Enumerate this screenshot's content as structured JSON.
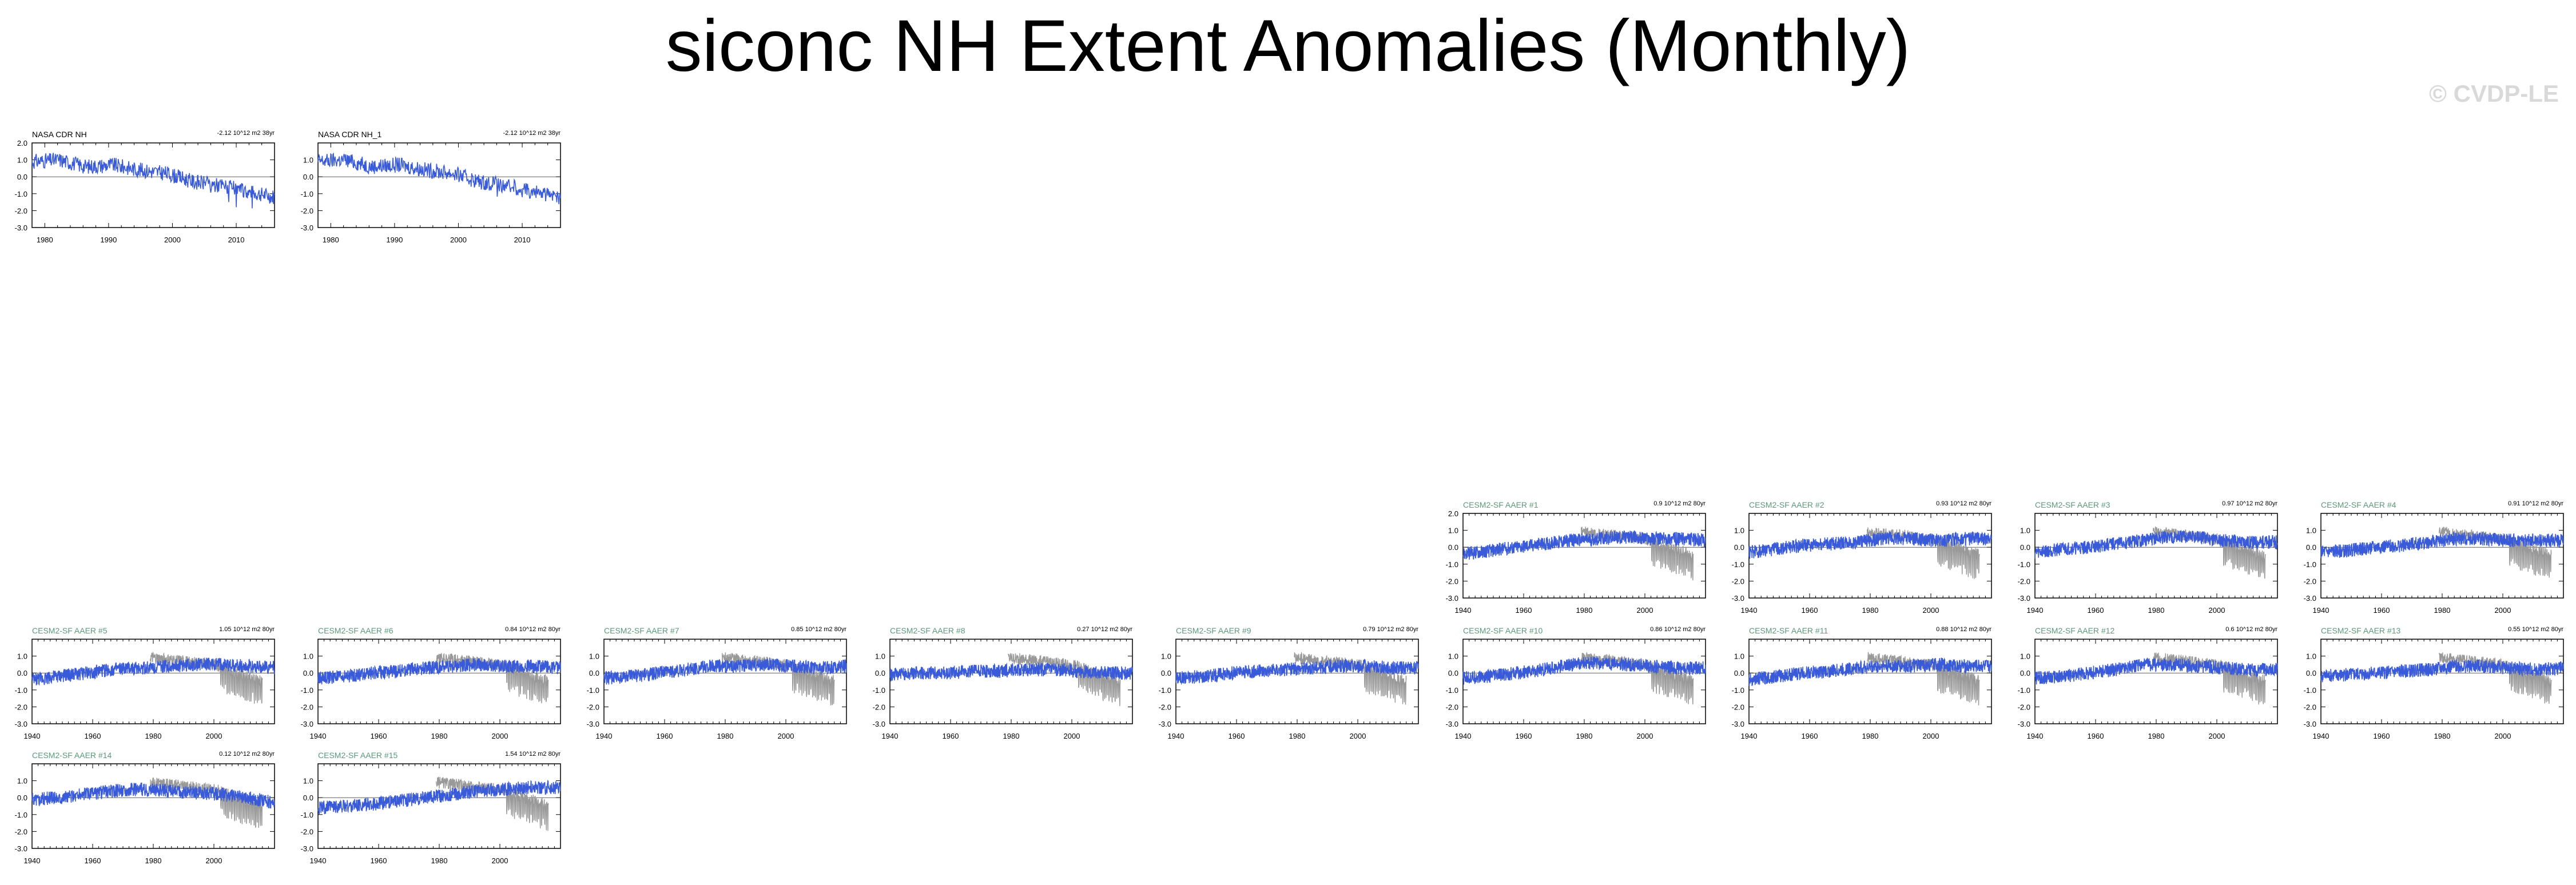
{
  "title": "siconc NH Extent Anomalies (Monthly)",
  "watermark": "© CVDP-LE",
  "colors": {
    "model": "#3a5bd9",
    "obs_overlay": "#999999",
    "model_title": "#5a9a7a",
    "obs_title": "#000000"
  },
  "chart_data": [
    {
      "type": "line",
      "title": "NASA CDR NH",
      "trend": "-2.12 10^12 m2 38yr",
      "x_range": [
        1978,
        2016
      ],
      "xticks": [
        1980,
        1990,
        2000,
        2010
      ],
      "ylim": [
        -3.0,
        2.0
      ],
      "yticks": [
        "2.0",
        "1.0",
        "0.0",
        "-1.0",
        "-2.0",
        "-3.0"
      ],
      "series": [
        {
          "values": [
            0.9,
            1.0,
            0.6,
            0.7,
            0.4,
            0.2,
            -0.3,
            -0.5,
            -0.9,
            -1.2
          ]
        }
      ]
    },
    {
      "type": "line",
      "title": "NASA CDR NH_1",
      "trend": "-2.12 10^12 m2 38yr",
      "x_range": [
        1978,
        2016
      ],
      "xticks": [
        1980,
        1990,
        2000,
        2010
      ],
      "ylim": [
        -3.0,
        2.0
      ],
      "yticks": [
        "1.0",
        "0.0",
        "-1.0",
        "-2.0",
        "-3.0"
      ],
      "series": [
        {
          "values": [
            0.9,
            1.0,
            0.6,
            0.7,
            0.4,
            0.2,
            -0.3,
            -0.5,
            -0.9,
            -1.2
          ]
        }
      ]
    },
    {
      "type": "line",
      "title": "CESM2-SF AAER #1",
      "trend": "0.9 10^12 m2 80yr",
      "x_range": [
        1940,
        2020
      ],
      "xticks": [
        1940,
        1960,
        1980,
        2000
      ],
      "ylim": [
        -3.0,
        2.0
      ],
      "yticks": [
        "2.0",
        "1.0",
        "0.0",
        "-1.0",
        "-2.0",
        "-3.0"
      ],
      "series": [
        {
          "values": [
            -0.4,
            -0.2,
            0.0,
            0.2,
            0.4,
            0.5,
            0.6,
            0.5,
            0.5,
            0.4
          ]
        }
      ]
    },
    {
      "type": "line",
      "title": "CESM2-SF AAER #2",
      "trend": "0.93 10^12 m2 80yr",
      "x_range": [
        1940,
        2020
      ],
      "xticks": [
        1940,
        1960,
        1980,
        2000
      ],
      "ylim": [
        -3.0,
        2.0
      ],
      "yticks": [
        "1.0",
        "0.0",
        "-1.0",
        "-2.0",
        "-3.0"
      ],
      "series": [
        {
          "values": [
            -0.3,
            -0.1,
            0.1,
            0.2,
            0.3,
            0.5,
            0.5,
            0.4,
            0.5,
            0.5
          ]
        }
      ]
    },
    {
      "type": "line",
      "title": "CESM2-SF AAER #3",
      "trend": "0.97 10^12 m2 80yr",
      "x_range": [
        1940,
        2020
      ],
      "xticks": [
        1940,
        1960,
        1980,
        2000
      ],
      "ylim": [
        -3.0,
        2.0
      ],
      "yticks": [
        "1.0",
        "0.0",
        "-1.0",
        "-2.0",
        "-3.0"
      ],
      "series": [
        {
          "values": [
            -0.3,
            -0.1,
            0.0,
            0.2,
            0.4,
            0.6,
            0.6,
            0.4,
            0.3,
            0.3
          ]
        }
      ]
    },
    {
      "type": "line",
      "title": "CESM2-SF AAER #4",
      "trend": "0.91 10^12 m2 80yr",
      "x_range": [
        1940,
        2020
      ],
      "xticks": [
        1940,
        1960,
        1980,
        2000
      ],
      "ylim": [
        -3.0,
        2.0
      ],
      "yticks": [
        "1.0",
        "0.0",
        "-1.0",
        "-2.0",
        "-3.0"
      ],
      "series": [
        {
          "values": [
            -0.3,
            -0.2,
            0.0,
            0.1,
            0.3,
            0.5,
            0.5,
            0.4,
            0.4,
            0.4
          ]
        }
      ]
    },
    {
      "type": "line",
      "title": "CESM2-SF AAER #5",
      "trend": "1.05 10^12 m2 80yr",
      "x_range": [
        1940,
        2020
      ],
      "xticks": [
        1940,
        1960,
        1980,
        2000
      ],
      "ylim": [
        -3.0,
        2.0
      ],
      "yticks": [
        "1.0",
        "0.0",
        "-1.0",
        "-2.0",
        "-3.0"
      ],
      "series": [
        {
          "values": [
            -0.4,
            -0.2,
            0.0,
            0.2,
            0.3,
            0.4,
            0.5,
            0.5,
            0.4,
            0.3
          ]
        }
      ]
    },
    {
      "type": "line",
      "title": "CESM2-SF AAER #6",
      "trend": "0.84 10^12 m2 80yr",
      "x_range": [
        1940,
        2020
      ],
      "xticks": [
        1940,
        1960,
        1980,
        2000
      ],
      "ylim": [
        -3.0,
        2.0
      ],
      "yticks": [
        "1.0",
        "0.0",
        "-1.0",
        "-2.0",
        "-3.0"
      ],
      "series": [
        {
          "values": [
            -0.3,
            -0.2,
            0.0,
            0.1,
            0.3,
            0.4,
            0.5,
            0.4,
            0.4,
            0.3
          ]
        }
      ]
    },
    {
      "type": "line",
      "title": "CESM2-SF AAER #7",
      "trend": "0.85 10^12 m2 80yr",
      "x_range": [
        1940,
        2020
      ],
      "xticks": [
        1940,
        1960,
        1980,
        2000
      ],
      "ylim": [
        -3.0,
        2.0
      ],
      "yticks": [
        "1.0",
        "0.0",
        "-1.0",
        "-2.0",
        "-3.0"
      ],
      "series": [
        {
          "values": [
            -0.3,
            -0.2,
            0.0,
            0.2,
            0.4,
            0.4,
            0.5,
            0.4,
            0.3,
            0.4
          ]
        }
      ]
    },
    {
      "type": "line",
      "title": "CESM2-SF AAER #8",
      "trend": "0.27 10^12 m2 80yr",
      "x_range": [
        1940,
        2020
      ],
      "xticks": [
        1940,
        1960,
        1980,
        2000
      ],
      "ylim": [
        -3.0,
        2.0
      ],
      "yticks": [
        "1.0",
        "0.0",
        "-1.0",
        "-2.0",
        "-3.0"
      ],
      "series": [
        {
          "values": [
            -0.1,
            0.0,
            0.0,
            0.1,
            0.1,
            0.2,
            0.2,
            0.1,
            0.0,
            0.0
          ]
        }
      ]
    },
    {
      "type": "line",
      "title": "CESM2-SF AAER #9",
      "trend": "0.79 10^12 m2 80yr",
      "x_range": [
        1940,
        2020
      ],
      "xticks": [
        1940,
        1960,
        1980,
        2000
      ],
      "ylim": [
        -3.0,
        2.0
      ],
      "yticks": [
        "1.0",
        "0.0",
        "-1.0",
        "-2.0",
        "-3.0"
      ],
      "series": [
        {
          "values": [
            -0.3,
            -0.2,
            0.0,
            0.1,
            0.2,
            0.3,
            0.4,
            0.4,
            0.3,
            0.3
          ]
        }
      ]
    },
    {
      "type": "line",
      "title": "CESM2-SF AAER #10",
      "trend": "0.86 10^12 m2 80yr",
      "x_range": [
        1940,
        2020
      ],
      "xticks": [
        1940,
        1960,
        1980,
        2000
      ],
      "ylim": [
        -3.0,
        2.0
      ],
      "yticks": [
        "1.0",
        "0.0",
        "-1.0",
        "-2.0",
        "-3.0"
      ],
      "series": [
        {
          "values": [
            -0.3,
            -0.2,
            0.0,
            0.2,
            0.5,
            0.6,
            0.5,
            0.4,
            0.3,
            0.3
          ]
        }
      ]
    },
    {
      "type": "line",
      "title": "CESM2-SF AAER #11",
      "trend": "0.88 10^12 m2 80yr",
      "x_range": [
        1940,
        2020
      ],
      "xticks": [
        1940,
        1960,
        1980,
        2000
      ],
      "ylim": [
        -3.0,
        2.0
      ],
      "yticks": [
        "1.0",
        "0.0",
        "-1.0",
        "-2.0",
        "-3.0"
      ],
      "series": [
        {
          "values": [
            -0.4,
            -0.2,
            0.0,
            0.1,
            0.3,
            0.4,
            0.4,
            0.5,
            0.4,
            0.4
          ]
        }
      ]
    },
    {
      "type": "line",
      "title": "CESM2-SF AAER #12",
      "trend": "0.6 10^12 m2 80yr",
      "x_range": [
        1940,
        2020
      ],
      "xticks": [
        1940,
        1960,
        1980,
        2000
      ],
      "ylim": [
        -3.0,
        2.0
      ],
      "yticks": [
        "1.0",
        "0.0",
        "-1.0",
        "-2.0",
        "-3.0"
      ],
      "series": [
        {
          "values": [
            -0.3,
            -0.2,
            0.0,
            0.2,
            0.5,
            0.5,
            0.4,
            0.3,
            0.2,
            0.2
          ]
        }
      ]
    },
    {
      "type": "line",
      "title": "CESM2-SF AAER #13",
      "trend": "0.55 10^12 m2 80yr",
      "x_range": [
        1940,
        2020
      ],
      "xticks": [
        1940,
        1960,
        1980,
        2000
      ],
      "ylim": [
        -3.0,
        2.0
      ],
      "yticks": [
        "1.0",
        "0.0",
        "-1.0",
        "-2.0",
        "-3.0"
      ],
      "series": [
        {
          "values": [
            -0.2,
            -0.1,
            0.0,
            0.1,
            0.2,
            0.4,
            0.4,
            0.3,
            0.2,
            0.3
          ]
        }
      ]
    },
    {
      "type": "line",
      "title": "CESM2-SF AAER #14",
      "trend": "0.12 10^12 m2 80yr",
      "x_range": [
        1940,
        2020
      ],
      "xticks": [
        1940,
        1960,
        1980,
        2000
      ],
      "ylim": [
        -3.0,
        2.0
      ],
      "yticks": [
        "1.0",
        "0.0",
        "-1.0",
        "-2.0",
        "-3.0"
      ],
      "series": [
        {
          "values": [
            -0.1,
            0.0,
            0.2,
            0.4,
            0.5,
            0.4,
            0.3,
            0.2,
            0.0,
            -0.3
          ]
        }
      ]
    },
    {
      "type": "line",
      "title": "CESM2-SF AAER #15",
      "trend": "1.54 10^12 m2 80yr",
      "x_range": [
        1940,
        2020
      ],
      "xticks": [
        1940,
        1960,
        1980,
        2000
      ],
      "ylim": [
        -3.0,
        2.0
      ],
      "yticks": [
        "1.0",
        "0.0",
        "-1.0",
        "-2.0",
        "-3.0"
      ],
      "series": [
        {
          "values": [
            -0.6,
            -0.5,
            -0.4,
            -0.2,
            0.0,
            0.2,
            0.4,
            0.5,
            0.6,
            0.6
          ]
        }
      ]
    }
  ]
}
